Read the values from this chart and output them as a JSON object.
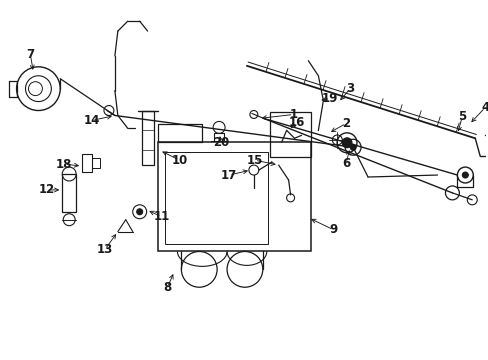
{
  "bg": "#ffffff",
  "fg": "#1a1a1a",
  "fig_w": 4.89,
  "fig_h": 3.6,
  "dpi": 100,
  "label_fs": 8.5
}
